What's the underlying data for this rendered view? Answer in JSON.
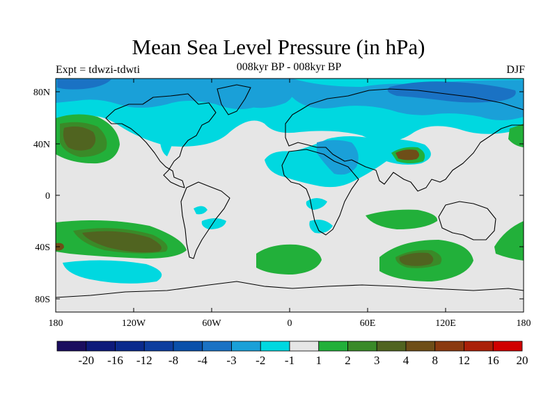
{
  "title": "Mean Sea Level Pressure (in hPa)",
  "subtitle": "008kyr BP - 008kyr BP",
  "left_label": "Expt = tdwzi-tdwti",
  "right_label": "DJF",
  "x_ticks": [
    "180",
    "120W",
    "60W",
    "0",
    "60E",
    "120E",
    "180"
  ],
  "y_ticks": [
    "80N",
    "40N",
    "0",
    "40S",
    "80S"
  ],
  "colorbar": {
    "labels": [
      "-20",
      "-16",
      "-12",
      "-8",
      "-4",
      "-3",
      "-2",
      "-1",
      "1",
      "2",
      "3",
      "4",
      "8",
      "12",
      "16",
      "20"
    ],
    "colors": [
      "#1a0d5e",
      "#0d1a7a",
      "#0a2a8c",
      "#0d3d9e",
      "#0a50aa",
      "#1a72c4",
      "#1aa0d8",
      "#00d8e0",
      "#e6e6e6",
      "#22b03a",
      "#3a8a28",
      "#506420",
      "#6e4e18",
      "#8a3a10",
      "#aa2008",
      "#d00000"
    ]
  },
  "map_colors": {
    "background": "#e6e6e6",
    "light_blue": "#00d8e0",
    "mid_blue": "#1aa0d8",
    "dark_blue": "#1a72c4",
    "green": "#22b03a",
    "dark_green": "#3a8a28",
    "olive": "#506420",
    "brown": "#6e4e18"
  }
}
